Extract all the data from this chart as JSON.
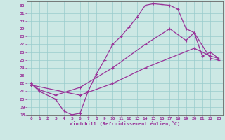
{
  "bg_color": "#cce8e4",
  "line_color": "#993399",
  "grid_color": "#99cccc",
  "xlim": [
    -0.5,
    23.5
  ],
  "ylim": [
    18,
    32.5
  ],
  "xticks": [
    0,
    1,
    2,
    3,
    4,
    5,
    6,
    7,
    8,
    9,
    10,
    11,
    12,
    13,
    14,
    15,
    16,
    17,
    18,
    19,
    20,
    21,
    22,
    23
  ],
  "yticks": [
    18,
    19,
    20,
    21,
    22,
    23,
    24,
    25,
    26,
    27,
    28,
    29,
    30,
    31,
    32
  ],
  "xlabel": "Windchill (Refroidissement éolien,°C)",
  "curve1_x": [
    0,
    1,
    3,
    4,
    5,
    6,
    7,
    8,
    9,
    10,
    11,
    12,
    13,
    14,
    15,
    16,
    17,
    18,
    19,
    20,
    21,
    22,
    23
  ],
  "curve1_y": [
    22.0,
    21.0,
    20.0,
    18.5,
    18.0,
    18.2,
    21.0,
    23.2,
    25.0,
    27.0,
    28.0,
    29.2,
    30.5,
    32.0,
    32.2,
    32.1,
    32.0,
    31.5,
    29.0,
    28.5,
    25.5,
    26.0,
    25.2
  ],
  "curve2_x": [
    0,
    1,
    3,
    6,
    10,
    14,
    17,
    19,
    20,
    22,
    23
  ],
  "curve2_y": [
    22.0,
    21.2,
    20.5,
    21.5,
    24.0,
    27.0,
    29.0,
    27.5,
    28.5,
    25.2,
    25.0
  ],
  "curve3_x": [
    0,
    6,
    10,
    14,
    20,
    22,
    23
  ],
  "curve3_y": [
    21.8,
    20.5,
    22.0,
    24.0,
    26.5,
    25.5,
    25.2
  ]
}
